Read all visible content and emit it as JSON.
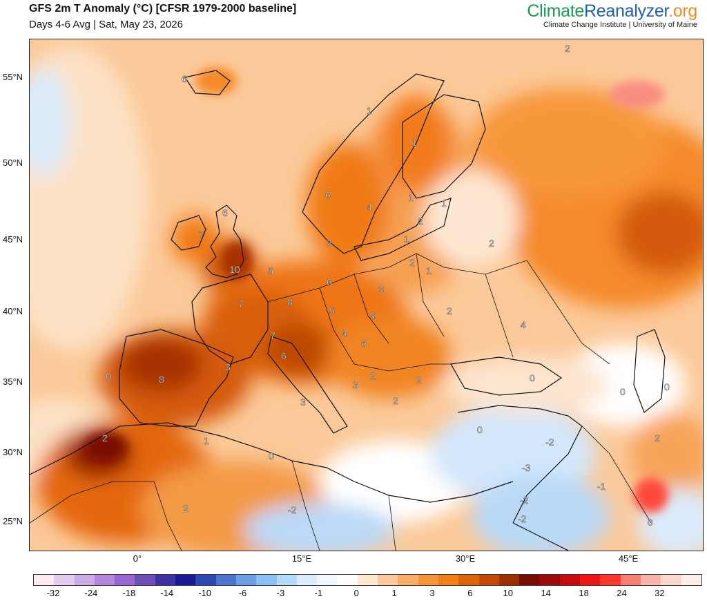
{
  "header": {
    "title": "GFS 2m T Anomaly (°C) [CFSR 1979-2000 baseline]",
    "subtitle": "Days 4-6 Avg | Sat, May 23, 2026"
  },
  "brand": {
    "part1": "Climate",
    "part2": "Reanalyzer",
    "part3": ".org",
    "subtitle": "Climate Change Institute | University of Maine"
  },
  "axes": {
    "lat_labels": [
      "55°N",
      "50°N",
      "45°N",
      "40°N",
      "35°N",
      "30°N",
      "25°N"
    ],
    "lon_labels": [
      "0°",
      "15°E",
      "30°E",
      "45°E"
    ]
  },
  "colorbar": {
    "colors": [
      "#fde9f1",
      "#e4cbee",
      "#cda9e6",
      "#b487dd",
      "#9a66d2",
      "#6c50b8",
      "#3f32a6",
      "#1a1a96",
      "#2e48b4",
      "#4c74d0",
      "#6e9ee6",
      "#8cc1f5",
      "#b6d9fa",
      "#dbecfc",
      "#f0f7ff",
      "#ffffff",
      "#ffe7d0",
      "#fdc99a",
      "#fbad66",
      "#f79438",
      "#f47f16",
      "#dd6406",
      "#c34a02",
      "#9c2f00",
      "#7a0d00",
      "#9a0a0a",
      "#c80c0c",
      "#ec1414",
      "#ff3a2a",
      "#f77f72",
      "#f9b3a8",
      "#fbd7cc",
      "#fdeeea"
    ],
    "tick_labels": [
      "-32",
      "-24",
      "-18",
      "-14",
      "-10",
      "-6",
      "-3",
      "-1",
      "0",
      "1",
      "3",
      "6",
      "10",
      "14",
      "18",
      "24",
      "32"
    ]
  },
  "map": {
    "contour_labels": [
      "2",
      "6",
      "1",
      "1",
      "6",
      "4",
      "1",
      "1",
      "6",
      "7",
      "2",
      "1",
      "2",
      "10",
      "5",
      "6",
      "3",
      "2",
      "1",
      "7",
      "8",
      "5",
      "4",
      "3",
      "4",
      "7",
      "4",
      "6",
      "6",
      "3",
      "2",
      "8",
      "0",
      "3",
      "3",
      "2",
      "2",
      "2",
      "0",
      "0",
      "0",
      "2",
      "0",
      "1",
      "-2",
      "0",
      "-3",
      "-2",
      "-1",
      "-2",
      "-2",
      "2",
      "0",
      "2"
    ]
  }
}
